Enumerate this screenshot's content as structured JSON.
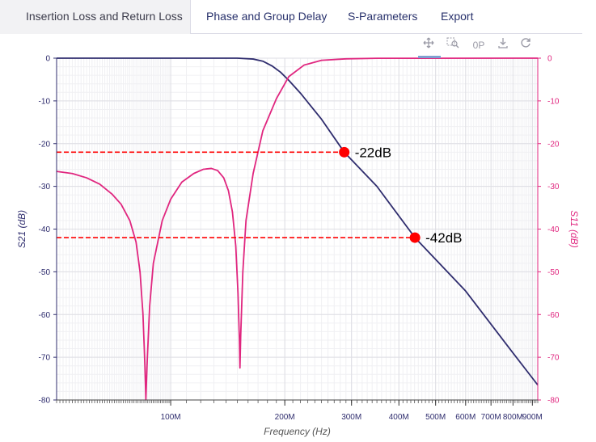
{
  "tabs": [
    {
      "label": "Insertion Loss and Return Loss",
      "active": true
    },
    {
      "label": "Phase and Group Delay",
      "active": false
    },
    {
      "label": "S-Parameters",
      "active": false
    },
    {
      "label": "Export",
      "active": false
    }
  ],
  "toolbar": {
    "icons": [
      "pan-icon",
      "zoom-icon",
      "autoscale-icon",
      "download-icon",
      "reset-icon"
    ],
    "autoscale_label": "0P"
  },
  "chart_data": {
    "type": "line",
    "x_scale": "log",
    "xlabel": "Frequency (Hz)",
    "ylabel_left": "S21 (dB)",
    "ylabel_right": "S11 (dB)",
    "xlim_hz": [
      50000000,
      930000000
    ],
    "ylim": [
      -80,
      0
    ],
    "grid": true,
    "x_ticks": [
      {
        "value": 100000000,
        "label": "100M"
      },
      {
        "value": 200000000,
        "label": "200M"
      },
      {
        "value": 300000000,
        "label": "300M"
      },
      {
        "value": 400000000,
        "label": "400M"
      },
      {
        "value": 500000000,
        "label": "500M"
      },
      {
        "value": 600000000,
        "label": "600M"
      },
      {
        "value": 700000000,
        "label": "700M"
      },
      {
        "value": 800000000,
        "label": "800M"
      },
      {
        "value": 900000000,
        "label": "900M"
      }
    ],
    "y_ticks": [
      0,
      -10,
      -20,
      -30,
      -40,
      -50,
      -60,
      -70,
      -80
    ],
    "series": [
      {
        "name": "S21",
        "color": "#2f2d6e",
        "axis": "left",
        "points": [
          [
            50000000,
            0
          ],
          [
            150000000,
            0
          ],
          [
            165000000,
            -0.2
          ],
          [
            175000000,
            -0.7
          ],
          [
            185000000,
            -1.8
          ],
          [
            195000000,
            -3.3
          ],
          [
            205000000,
            -5.2
          ],
          [
            220000000,
            -8.2
          ],
          [
            250000000,
            -14.3
          ],
          [
            287000000,
            -22
          ],
          [
            350000000,
            -30
          ],
          [
            441000000,
            -42
          ],
          [
            600000000,
            -54.5
          ],
          [
            800000000,
            -69
          ],
          [
            930000000,
            -76.5
          ]
        ]
      },
      {
        "name": "S11",
        "color": "#e0267f",
        "axis": "right",
        "points": [
          [
            50000000,
            -26.5
          ],
          [
            55000000,
            -27
          ],
          [
            60000000,
            -28
          ],
          [
            65000000,
            -29.5
          ],
          [
            70000000,
            -31.8
          ],
          [
            74000000,
            -34.2
          ],
          [
            78000000,
            -38
          ],
          [
            81000000,
            -43
          ],
          [
            83000000,
            -50
          ],
          [
            84500000,
            -60
          ],
          [
            85500000,
            -72
          ],
          [
            86000000,
            -80
          ],
          [
            86600000,
            -72
          ],
          [
            88000000,
            -58
          ],
          [
            90000000,
            -48
          ],
          [
            95000000,
            -38
          ],
          [
            100000000,
            -33
          ],
          [
            107000000,
            -29
          ],
          [
            115000000,
            -27
          ],
          [
            122000000,
            -26
          ],
          [
            128000000,
            -25.8
          ],
          [
            133000000,
            -26.3
          ],
          [
            138000000,
            -28
          ],
          [
            142000000,
            -31
          ],
          [
            145500000,
            -36
          ],
          [
            148500000,
            -44
          ],
          [
            150500000,
            -55
          ],
          [
            151800000,
            -66
          ],
          [
            152300000,
            -72.5
          ],
          [
            153000000,
            -65
          ],
          [
            155000000,
            -50
          ],
          [
            158000000,
            -38
          ],
          [
            165000000,
            -27
          ],
          [
            175000000,
            -17
          ],
          [
            190000000,
            -9.5
          ],
          [
            205000000,
            -4.3
          ],
          [
            225000000,
            -1.6
          ],
          [
            250000000,
            -0.5
          ],
          [
            290000000,
            -0.15
          ],
          [
            350000000,
            -0.03
          ],
          [
            930000000,
            0
          ]
        ]
      }
    ],
    "annotations": [
      {
        "x": 287000000,
        "y": -22,
        "label": "-22dB",
        "color": "#ff0000"
      },
      {
        "x": 441000000,
        "y": -42,
        "label": "-42dB",
        "color": "#ff0000"
      }
    ]
  }
}
